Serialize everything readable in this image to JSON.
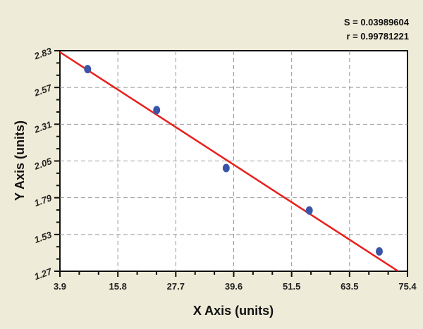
{
  "chart_data": {
    "type": "scatter",
    "xlabel": "X Axis (units)",
    "ylabel": "Y Axis (units)",
    "xlim": [
      3.9,
      75.4
    ],
    "ylim": [
      1.27,
      2.83
    ],
    "xticks": [
      "3.9",
      "15.8",
      "27.7",
      "39.6",
      "51.5",
      "63.5",
      "75.4"
    ],
    "yticks": [
      "1.27",
      "1.53",
      "1.79",
      "2.05",
      "2.31",
      "2.57",
      "2.83"
    ],
    "grid": true,
    "points": {
      "x": [
        9.6,
        23.8,
        38.1,
        55.2,
        69.6
      ],
      "y": [
        2.7,
        2.41,
        2.0,
        1.7,
        1.41
      ]
    },
    "fit_line": {
      "x": [
        3.9,
        73.5
      ],
      "y": [
        2.82,
        1.27
      ]
    },
    "annotations": [
      "S = 0.03989604",
      "r = 0.99781221"
    ],
    "colors": {
      "points": "#3a55a8",
      "line": "#e8201c",
      "background": "#eeebd8"
    }
  }
}
